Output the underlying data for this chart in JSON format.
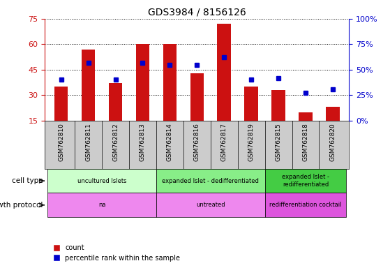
{
  "title": "GDS3984 / 8156126",
  "samples": [
    "GSM762810",
    "GSM762811",
    "GSM762812",
    "GSM762813",
    "GSM762814",
    "GSM762816",
    "GSM762817",
    "GSM762819",
    "GSM762815",
    "GSM762818",
    "GSM762820"
  ],
  "counts": [
    35,
    57,
    37,
    60,
    60,
    43,
    72,
    35,
    33,
    20,
    23
  ],
  "percentile_ranks": [
    40,
    57,
    40,
    57,
    55,
    55,
    62,
    40,
    42,
    27,
    31
  ],
  "ylim_left": [
    15,
    75
  ],
  "ylim_right": [
    0,
    100
  ],
  "yticks_left": [
    15,
    30,
    45,
    60,
    75
  ],
  "yticks_right": [
    0,
    25,
    50,
    75,
    100
  ],
  "cell_type_groups": [
    {
      "label": "uncultured Islets",
      "start": 0,
      "end": 4,
      "color": "#ccffcc"
    },
    {
      "label": "expanded Islet - dedifferentiated",
      "start": 4,
      "end": 8,
      "color": "#88ee88"
    },
    {
      "label": "expanded Islet -\nredifferentiated",
      "start": 8,
      "end": 11,
      "color": "#44cc44"
    }
  ],
  "growth_protocol_groups": [
    {
      "label": "na",
      "start": 0,
      "end": 4,
      "color": "#ee88ee"
    },
    {
      "label": "untreated",
      "start": 4,
      "end": 8,
      "color": "#ee88ee"
    },
    {
      "label": "redifferentiation cocktail",
      "start": 8,
      "end": 11,
      "color": "#dd55dd"
    }
  ],
  "bar_color": "#cc1111",
  "marker_color": "#0000cc",
  "background_color": "#ffffff",
  "axis_left_color": "#cc1111",
  "axis_right_color": "#0000cc",
  "xtick_bg_color": "#cccccc",
  "legend_labels": [
    "count",
    "percentile rank within the sample"
  ]
}
